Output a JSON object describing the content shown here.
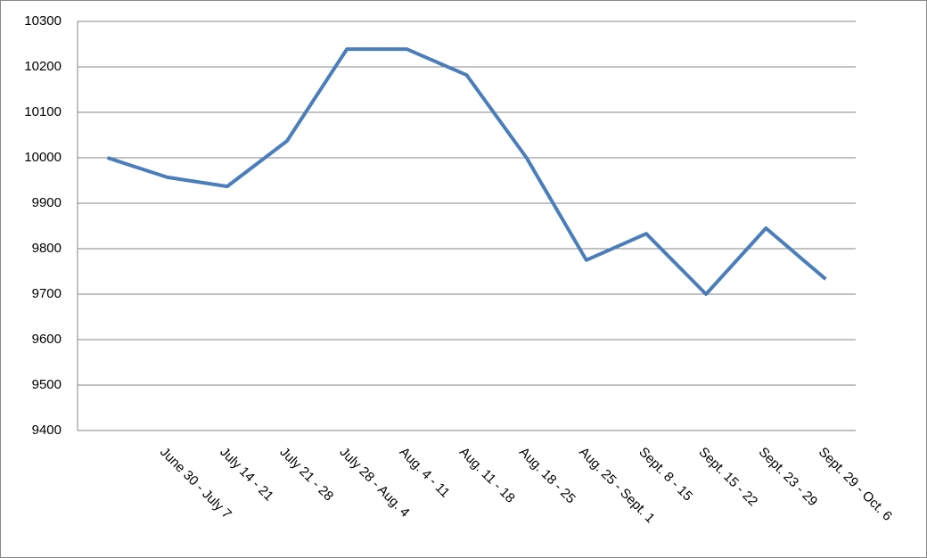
{
  "chart_data": {
    "type": "line",
    "categories": [
      null,
      "June 30 - July 7",
      "July 14 - 21",
      "July 21 - 28",
      "July 28 - Aug. 4",
      "Aug. 4 - 11",
      "Aug. 11 - 18",
      "Aug. 18 - 25",
      "Aug. 25 - Sept. 1",
      "Sept. 8 - 15",
      "Sept. 15 - 22",
      "Sept. 23 - 29",
      "Sept. 29 - Oct. 6"
    ],
    "values": [
      10000,
      9957,
      9937,
      10037,
      10239,
      10239,
      10182,
      10000,
      9775,
      9833,
      9700,
      9845,
      9733
    ],
    "color": "#4a7ebb",
    "ylim": [
      9400,
      10300
    ],
    "yticks": [
      9400,
      9500,
      9600,
      9700,
      9800,
      9900,
      10000,
      10100,
      10200,
      10300
    ],
    "grid": true
  }
}
